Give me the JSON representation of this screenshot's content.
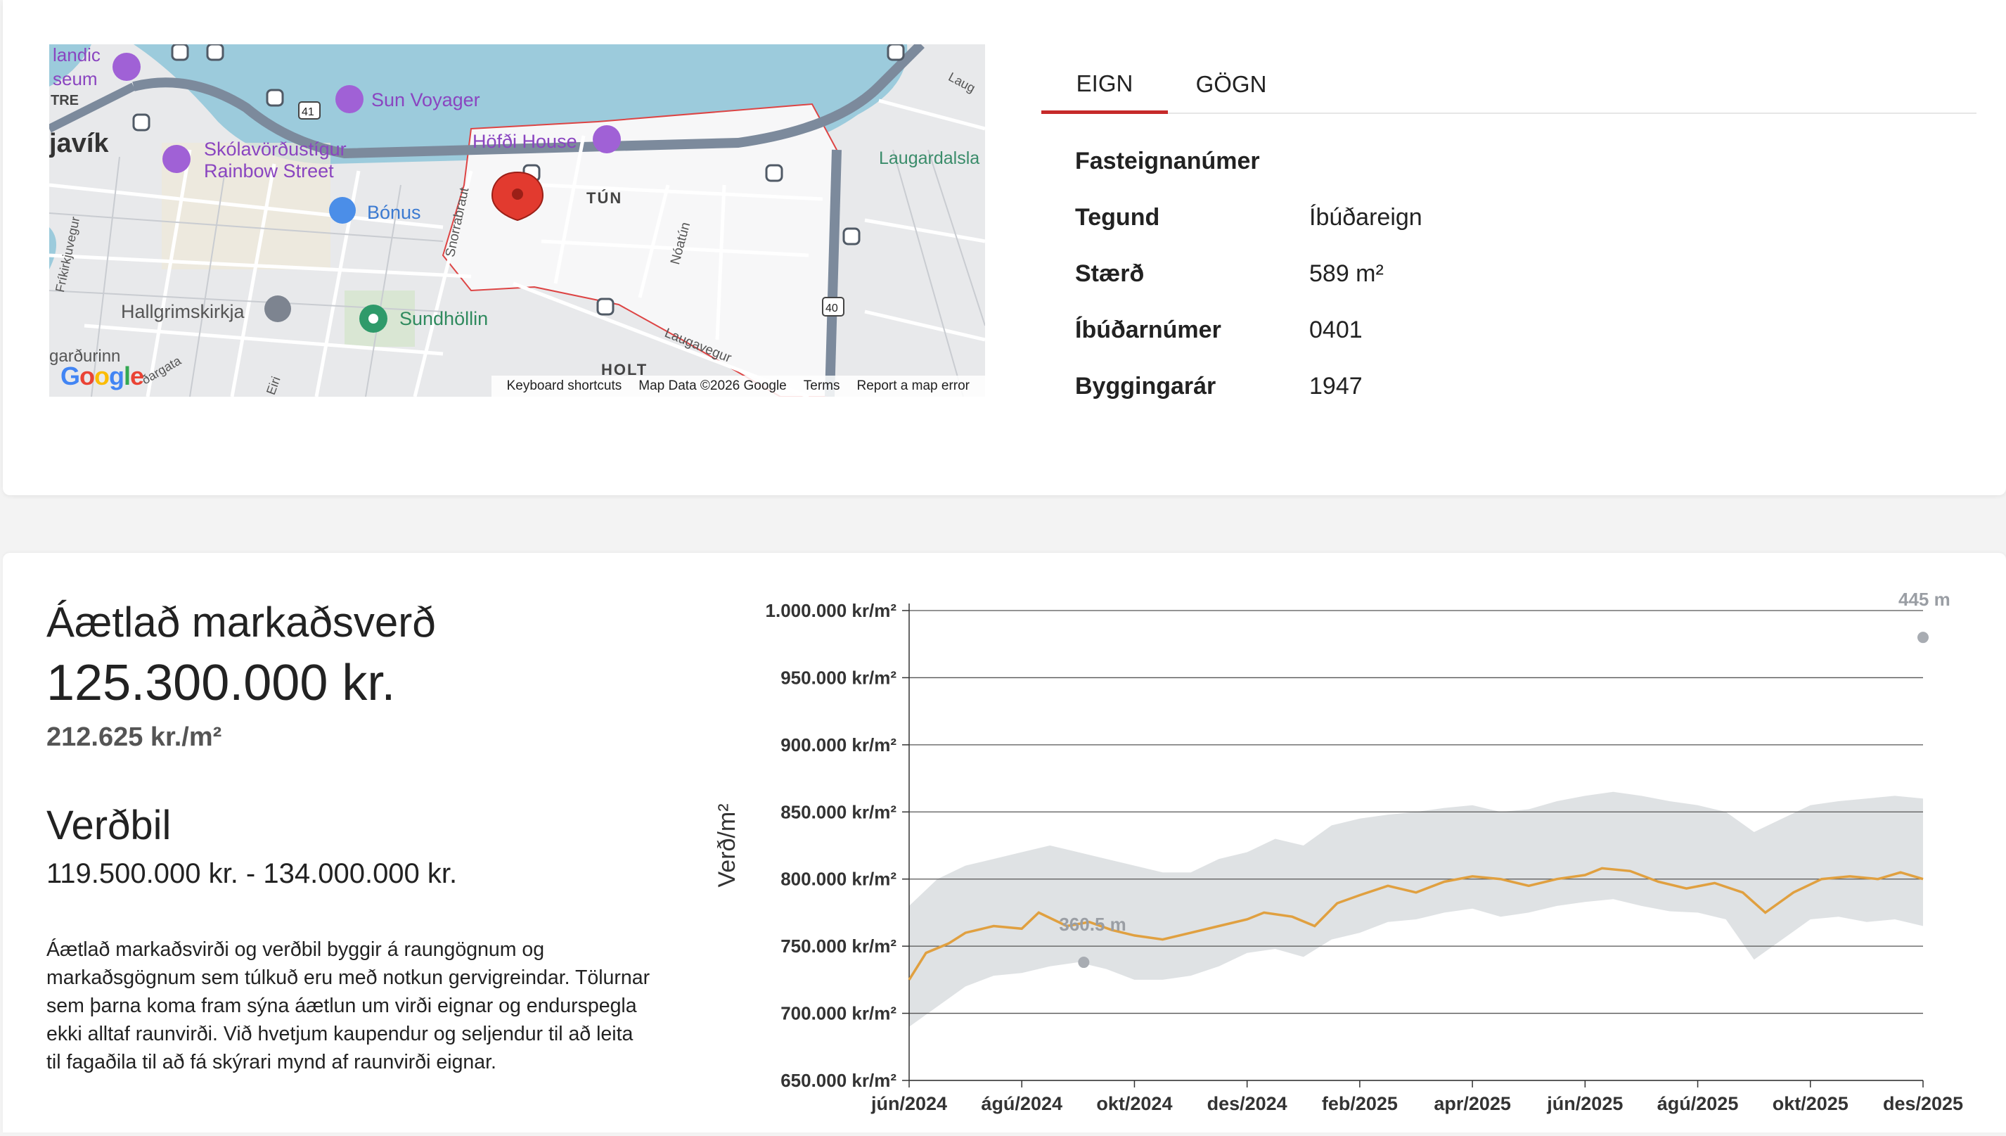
{
  "map": {
    "labels": {
      "sun_voyager": "Sun Voyager",
      "hofdi_house": "Höfði House",
      "skolavordustigur": "Skólavörðustígur",
      "rainbow_street": "Rainbow Street",
      "bonus": "Bónus",
      "hallgrimskirkja": "Hallgrimskirkja",
      "sundhollin": "Sundhöllin",
      "tun": "TÚN",
      "holt": "HOLT",
      "laugardals": "Laugardalsla",
      "icelandic": "landic",
      "museum": "seum",
      "tre": "TRE",
      "javik": "javík",
      "gardurinn": "garðurinn",
      "snorrabraut": "Snorrabraut",
      "noatun": "Nóatún",
      "laugavegur": "Laugavegur",
      "frikirkjuvegur": "Fríkirkjuvegur",
      "bergstadastr": "ðargata",
      "eiri": "Eiri",
      "laug": "Laug",
      "road41": "41",
      "road40": "40"
    },
    "footer": {
      "shortcuts": "Keyboard shortcuts",
      "map_data": "Map Data ©2026 Google",
      "terms": "Terms",
      "report": "Report a map error"
    },
    "logo": "Google"
  },
  "tabs": [
    "EIGN",
    "GÖGN"
  ],
  "active_tab": "EIGN",
  "properties": [
    {
      "key": "Fasteignanúmer",
      "value": ""
    },
    {
      "key": "Tegund",
      "value": "Íbúðareign"
    },
    {
      "key": "Stærð",
      "value": "589 m²"
    },
    {
      "key": "Íbúðarnúmer",
      "value": "0401"
    },
    {
      "key": "Byggingarár",
      "value": "1947"
    }
  ],
  "valuation": {
    "title": "Áætlað markaðsverð",
    "price": "125.300.000 kr.",
    "price_per_sqm": "212.625 kr./m²",
    "range_title": "Verðbil",
    "range": "119.500.000 kr. - 134.000.000 kr.",
    "disclaimer": "Áætlað markaðsvirði og verðbil byggir á raungögnum og markaðsgögnum sem túlkuð eru með notkun gervigreindar. Tölurnar sem þarna koma fram sýna áætlun um virði eignar og endurspegla ekki alltaf raunvirði. Við hvetjum kaupendur og seljendur til að leita til fagaðila til að fá skýrari mynd af raunvirði eignar."
  },
  "colors": {
    "accent": "#c62a2a",
    "line": "#e0a040",
    "band": "#dde0e3",
    "water": "#9ccbdc"
  },
  "chart_data": {
    "type": "line",
    "ylabel": "Verð/m²",
    "ylim": [
      650000,
      1000000
    ],
    "yticks": [
      650000,
      700000,
      750000,
      800000,
      850000,
      900000,
      950000,
      1000000
    ],
    "ytick_labels": [
      "650.000 kr/m²",
      "700.000 kr/m²",
      "750.000 kr/m²",
      "800.000 kr/m²",
      "850.000 kr/m²",
      "900.000 kr/m²",
      "950.000 kr/m²",
      "1.000.000 kr/m²"
    ],
    "xtick_labels": [
      "jún/2024",
      "ágú/2024",
      "okt/2024",
      "des/2024",
      "feb/2025",
      "apr/2025",
      "jún/2025",
      "ágú/2025",
      "okt/2025",
      "des/2025"
    ],
    "x_months": [
      0,
      2,
      4,
      6,
      8,
      10,
      12,
      14,
      16,
      18
    ],
    "series": [
      {
        "type": "line",
        "x": [
          0,
          0.3,
          0.7,
          1.0,
          1.5,
          2.0,
          2.3,
          2.8,
          3.2,
          3.6,
          4.0,
          4.5,
          5.0,
          5.5,
          6.0,
          6.3,
          6.8,
          7.2,
          7.6,
          8.0,
          8.5,
          9.0,
          9.5,
          10.0,
          10.5,
          11.0,
          11.5,
          12.0,
          12.3,
          12.8,
          13.3,
          13.8,
          14.3,
          14.8,
          15.2,
          15.7,
          16.2,
          16.7,
          17.2,
          17.6,
          18.0
        ],
        "values": [
          725000,
          745000,
          752000,
          760000,
          765000,
          763000,
          775000,
          765000,
          768000,
          762000,
          758000,
          755000,
          760000,
          765000,
          770000,
          775000,
          772000,
          765000,
          782000,
          788000,
          795000,
          790000,
          798000,
          802000,
          800000,
          795000,
          800000,
          803000,
          808000,
          806000,
          798000,
          793000,
          797000,
          790000,
          775000,
          790000,
          800000,
          802000,
          800000,
          805000,
          800000
        ]
      },
      {
        "type": "band",
        "x": [
          0,
          0.5,
          1.0,
          1.5,
          2.0,
          2.5,
          3.0,
          3.5,
          4.0,
          4.5,
          5.0,
          5.5,
          6.0,
          6.5,
          7.0,
          7.5,
          8.0,
          8.5,
          9.0,
          9.5,
          10.0,
          10.5,
          11.0,
          11.5,
          12.0,
          12.5,
          13.0,
          13.5,
          14.0,
          14.5,
          15.0,
          15.5,
          16.0,
          16.5,
          17.0,
          17.5,
          18.0
        ],
        "upper": [
          780000,
          800000,
          810000,
          815000,
          820000,
          825000,
          820000,
          815000,
          810000,
          805000,
          805000,
          815000,
          820000,
          830000,
          825000,
          840000,
          845000,
          848000,
          850000,
          853000,
          855000,
          850000,
          852000,
          858000,
          862000,
          865000,
          862000,
          858000,
          855000,
          850000,
          835000,
          845000,
          855000,
          858000,
          860000,
          862000,
          860000
        ],
        "lower": [
          690000,
          705000,
          720000,
          728000,
          730000,
          735000,
          738000,
          733000,
          725000,
          725000,
          728000,
          735000,
          745000,
          748000,
          742000,
          755000,
          760000,
          768000,
          770000,
          775000,
          778000,
          772000,
          775000,
          780000,
          783000,
          785000,
          780000,
          776000,
          775000,
          770000,
          740000,
          755000,
          770000,
          772000,
          768000,
          770000,
          765000
        ]
      }
    ],
    "annotations": [
      {
        "label": "360.5 m",
        "x": 3.1,
        "y": 738000
      },
      {
        "label": "445 m",
        "x": 18.0,
        "y": 980000
      }
    ],
    "grid": true
  }
}
